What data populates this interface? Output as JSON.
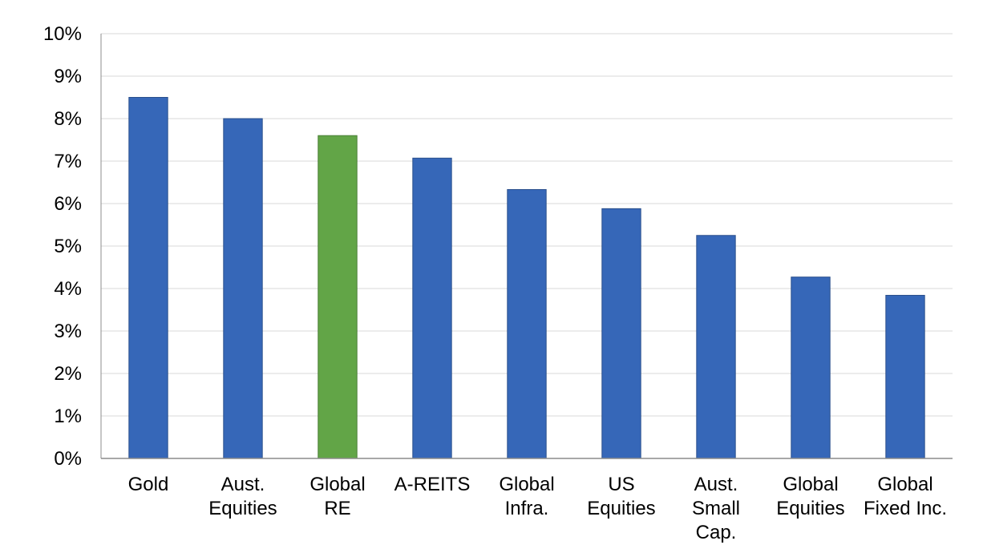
{
  "chart_data": {
    "type": "bar",
    "title": "",
    "xlabel": "",
    "ylabel": "",
    "categories": [
      [
        "Gold"
      ],
      [
        "Aust.",
        "Equities"
      ],
      [
        "Global",
        "RE"
      ],
      [
        "A-REITS"
      ],
      [
        "Global",
        "Infra."
      ],
      [
        "US",
        "Equities"
      ],
      [
        "Aust.",
        "Small",
        "Cap."
      ],
      [
        "Global",
        "Equities"
      ],
      [
        "Global",
        "Fixed Inc."
      ]
    ],
    "values": [
      8.5,
      8.0,
      7.6,
      7.07,
      6.33,
      5.88,
      5.25,
      4.27,
      3.84
    ],
    "bar_colors": [
      "#3667b8",
      "#3667b8",
      "#62a547",
      "#3667b8",
      "#3667b8",
      "#3667b8",
      "#3667b8",
      "#3667b8",
      "#3667b8"
    ],
    "ylim": [
      0,
      10
    ],
    "yticks": [
      0,
      1,
      2,
      3,
      4,
      5,
      6,
      7,
      8,
      9,
      10
    ],
    "ytick_suffix": "%",
    "grid": true,
    "legend": "none",
    "colors": {
      "gridline": "#d9d9d9",
      "axis": "#8c8c8c",
      "bar_border": "#2a4f8c",
      "highlight_border": "#4a7f35"
    }
  }
}
